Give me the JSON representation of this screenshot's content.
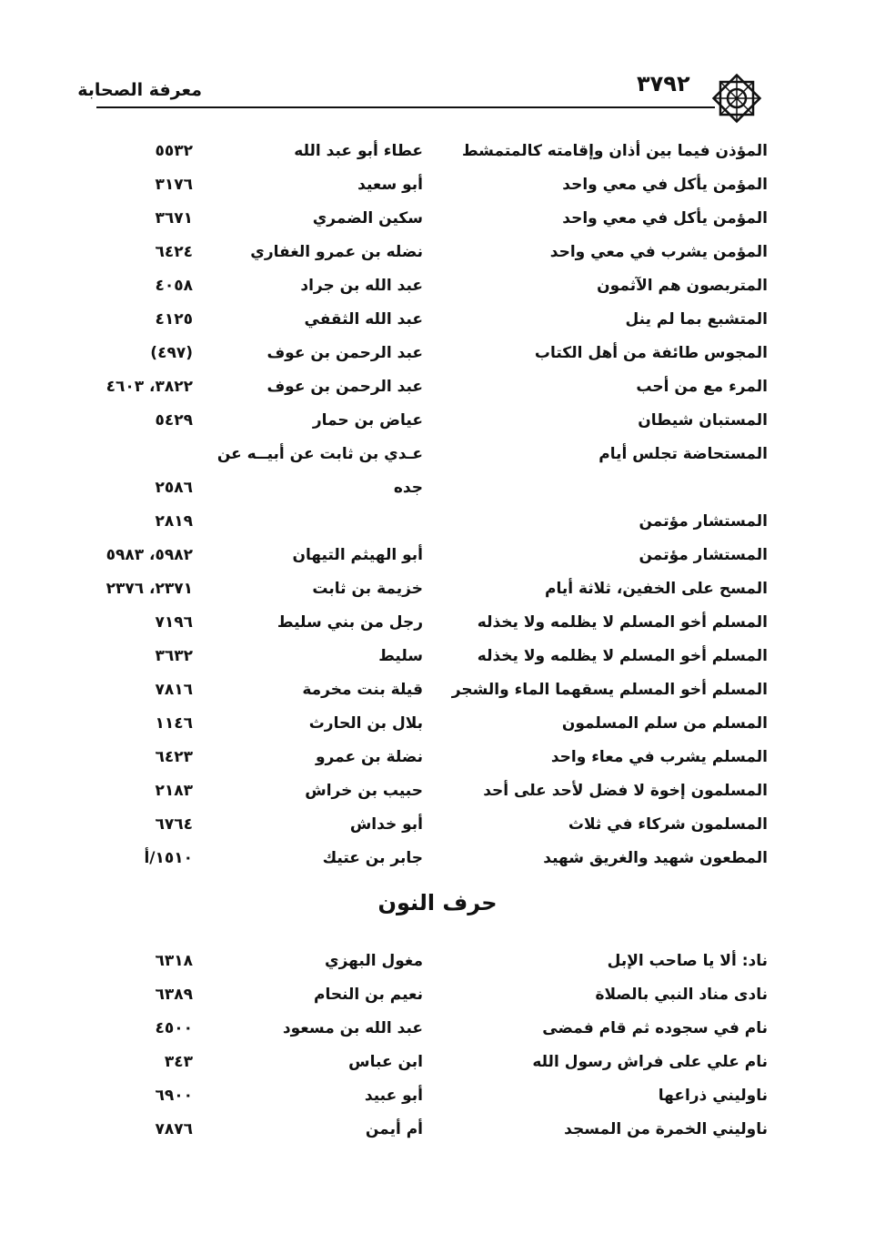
{
  "header": {
    "page_number": "٣٧٩٢",
    "book_title": "معرفة الصحابة",
    "ornament_icon": "octagram-ornament"
  },
  "entries_a": [
    {
      "hadith": "المؤذن فيما بين أذان وإقامته كالمتمشط",
      "narrator": "عطاء أبو عبد الله",
      "ref": "٥٥٣٢"
    },
    {
      "hadith": "المؤمن يأكل في معي واحد",
      "narrator": "أبو سعيد",
      "ref": "٣١٧٦"
    },
    {
      "hadith": "المؤمن يأكل في معي واحد",
      "narrator": "سكين الضمري",
      "ref": "٣٦٧١"
    },
    {
      "hadith": "المؤمن يشرب في معي واحد",
      "narrator": "نضله بن عمرو الغفاري",
      "ref": "٦٤٢٤"
    },
    {
      "hadith": "المتربصون هم الآثمون",
      "narrator": "عبد الله بن جراد",
      "ref": "٤٠٥٨"
    },
    {
      "hadith": "المتشبع بما لم ينل",
      "narrator": "عبد الله الثقفي",
      "ref": "٤١٢٥"
    },
    {
      "hadith": "المجوس طائفة من أهل الكتاب",
      "narrator": "عبد الرحمن بن عوف",
      "ref": "(٤٩٧)"
    },
    {
      "hadith": "المرء مع من أحب",
      "narrator": "عبد الرحمن بن عوف",
      "ref": "٣٨٢٢، ٤٦٠٣"
    },
    {
      "hadith": "المستبان شيطان",
      "narrator": "عياض بن حمار",
      "ref": "٥٤٢٩"
    },
    {
      "hadith": "المستحاضة تجلس أيام",
      "narrator": "عـدي بن ثابت عن أبيــه عن",
      "ref": ""
    },
    {
      "hadith": "",
      "narrator": "جده",
      "ref": "٢٥٨٦"
    },
    {
      "hadith": "المستشار مؤتمن",
      "narrator": "",
      "ref": "٢٨١٩"
    },
    {
      "hadith": "المستشار مؤتمن",
      "narrator": "أبو الهيثم التيهان",
      "ref": "٥٩٨٢، ٥٩٨٣"
    },
    {
      "hadith": "المسح على الخفين، ثلاثة أيام",
      "narrator": "خزيمة بن ثابت",
      "ref": "٢٣٧١، ٢٣٧٦"
    },
    {
      "hadith": "المسلم أخو المسلم لا يظلمه ولا يخذله",
      "narrator": "رجل من بني سليط",
      "ref": "٧١٩٦"
    },
    {
      "hadith": "المسلم أخو المسلم لا يظلمه ولا يخذله",
      "narrator": "سليط",
      "ref": "٣٦٣٢"
    },
    {
      "hadith": "المسلم أخو المسلم يسقهما الماء والشجر",
      "narrator": "قيلة بنت مخرمة",
      "ref": "٧٨١٦"
    },
    {
      "hadith": "المسلم من سلم المسلمون",
      "narrator": "بلال بن الحارث",
      "ref": "١١٤٦"
    },
    {
      "hadith": "المسلم يشرب في معاء واحد",
      "narrator": "نضلة بن عمرو",
      "ref": "٦٤٢٣"
    },
    {
      "hadith": "المسلمون إخوة لا فضل لأحد على أحد",
      "narrator": "حبيب بن خراش",
      "ref": "٢١٨٣"
    },
    {
      "hadith": "المسلمون شركاء في ثلاث",
      "narrator": "أبو خداش",
      "ref": "٦٧٦٤"
    },
    {
      "hadith": "المطعون شهيد والغريق شهيد",
      "narrator": "جابر بن عتيك",
      "ref": "١٥١٠/أ"
    }
  ],
  "section_heading": "حرف النون",
  "entries_b": [
    {
      "hadith": "ناد: ألا يا صاحب الإبل",
      "narrator": "مغول البهزي",
      "ref": "٦٣١٨"
    },
    {
      "hadith": "نادى مناد النبي بالصلاة",
      "narrator": "نعيم بن النحام",
      "ref": "٦٣٨٩"
    },
    {
      "hadith": "نام في سجوده ثم قام فمضى",
      "narrator": "عبد الله بن مسعود",
      "ref": "٤٥٠٠"
    },
    {
      "hadith": "نام علي على فراش رسول الله",
      "narrator": "ابن عباس",
      "ref": "٣٤٣"
    },
    {
      "hadith": "ناوليني ذراعها",
      "narrator": "أبو عبيد",
      "ref": "٦٩٠٠"
    },
    {
      "hadith": "ناوليني الخمرة من المسجد",
      "narrator": "أم أيمن",
      "ref": "٧٨٧٦"
    }
  ]
}
